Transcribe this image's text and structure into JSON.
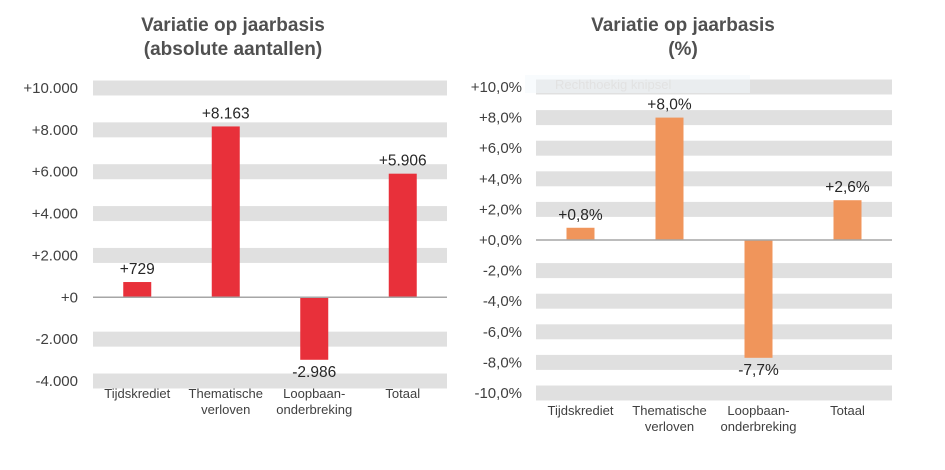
{
  "overlay": {
    "tooltip_text": "Rechthoekig knipsel"
  },
  "chart_data": [
    {
      "type": "bar",
      "title": [
        "Variatie op jaarbasis",
        "(absolute aantallen)"
      ],
      "categories": [
        [
          "Tijdskrediet"
        ],
        [
          "Thematische",
          "verloven"
        ],
        [
          "Loopbaan-",
          "onderbreking"
        ],
        [
          "Totaal"
        ]
      ],
      "values": [
        729,
        8163,
        -2986,
        5906
      ],
      "data_labels": [
        "+729",
        "+8.163",
        "-2.986",
        "+5.906"
      ],
      "ylim": [
        -4000,
        10000
      ],
      "yticks": [
        10000,
        8000,
        6000,
        4000,
        2000,
        0,
        -2000,
        -4000
      ],
      "ytick_labels": [
        "+10.000",
        "+8.000",
        "+6.000",
        "+4.000",
        "+2.000",
        "+0",
        "-2.000",
        "-4.000"
      ],
      "bar_color": "#e8303a",
      "band_color": "#e0e0e0",
      "grid": "alternating-bands",
      "xlabel": "",
      "ylabel": ""
    },
    {
      "type": "bar",
      "title": [
        "Variatie op jaarbasis",
        "(%)"
      ],
      "categories": [
        [
          "Tijdskrediet"
        ],
        [
          "Thematische",
          "verloven"
        ],
        [
          "Loopbaan-",
          "onderbreking"
        ],
        [
          "Totaal"
        ]
      ],
      "values": [
        0.8,
        8.0,
        -7.7,
        2.6
      ],
      "data_labels": [
        "+0,8%",
        "+8,0%",
        "-7,7%",
        "+2,6%"
      ],
      "ylim": [
        -10,
        10
      ],
      "yticks": [
        10,
        8,
        6,
        4,
        2,
        0,
        -2,
        -4,
        -6,
        -8,
        -10
      ],
      "ytick_labels": [
        "+10,0%",
        "+8,0%",
        "+6,0%",
        "+4,0%",
        "+2,0%",
        "+0,0%",
        "-2,0%",
        "-4,0%",
        "-6,0%",
        "-8,0%",
        "-10,0%"
      ],
      "bar_color": "#f0955b",
      "band_color": "#e0e0e0",
      "grid": "bands",
      "xlabel": "",
      "ylabel": ""
    }
  ]
}
